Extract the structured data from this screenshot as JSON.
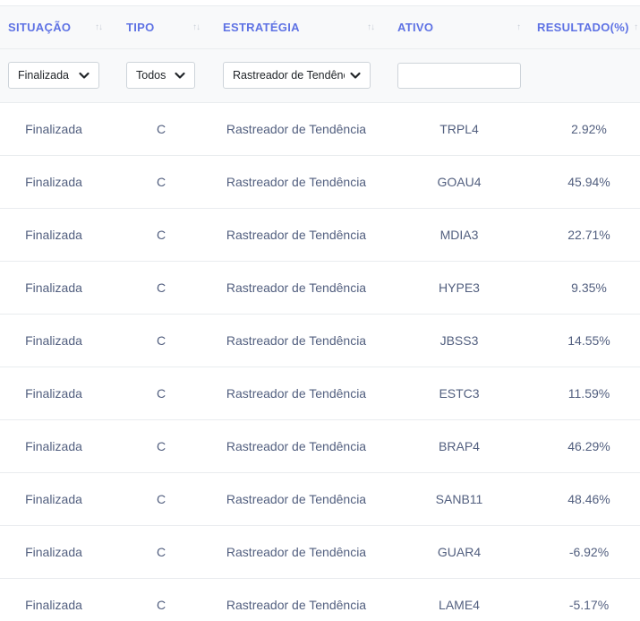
{
  "table": {
    "columns": [
      {
        "key": "situacao",
        "label": "SITUAÇÃO",
        "sort_icon": "sort-both-icon"
      },
      {
        "key": "tipo",
        "label": "TIPO",
        "sort_icon": "sort-both-icon"
      },
      {
        "key": "estrategia",
        "label": "ESTRATÉGIA",
        "sort_icon": "sort-both-icon"
      },
      {
        "key": "ativo",
        "label": "ATIVO",
        "sort_icon": "sort-up-icon"
      },
      {
        "key": "resultado",
        "label": "RESULTADO(%)",
        "sort_icon": "sort-up-icon"
      }
    ],
    "filters": {
      "situacao": "Finalizada",
      "tipo": "Todos",
      "estrategia": "Rastreador de Tendência",
      "ativo": ""
    },
    "rows": [
      {
        "situacao": "Finalizada",
        "tipo": "C",
        "estrategia": "Rastreador de Tendência",
        "ativo": "TRPL4",
        "resultado": "2.92%"
      },
      {
        "situacao": "Finalizada",
        "tipo": "C",
        "estrategia": "Rastreador de Tendência",
        "ativo": "GOAU4",
        "resultado": "45.94%"
      },
      {
        "situacao": "Finalizada",
        "tipo": "C",
        "estrategia": "Rastreador de Tendência",
        "ativo": "MDIA3",
        "resultado": "22.71%"
      },
      {
        "situacao": "Finalizada",
        "tipo": "C",
        "estrategia": "Rastreador de Tendência",
        "ativo": "HYPE3",
        "resultado": "9.35%"
      },
      {
        "situacao": "Finalizada",
        "tipo": "C",
        "estrategia": "Rastreador de Tendência",
        "ativo": "JBSS3",
        "resultado": "14.55%"
      },
      {
        "situacao": "Finalizada",
        "tipo": "C",
        "estrategia": "Rastreador de Tendência",
        "ativo": "ESTC3",
        "resultado": "11.59%"
      },
      {
        "situacao": "Finalizada",
        "tipo": "C",
        "estrategia": "Rastreador de Tendência",
        "ativo": "BRAP4",
        "resultado": "46.29%"
      },
      {
        "situacao": "Finalizada",
        "tipo": "C",
        "estrategia": "Rastreador de Tendência",
        "ativo": "SANB11",
        "resultado": "48.46%"
      },
      {
        "situacao": "Finalizada",
        "tipo": "C",
        "estrategia": "Rastreador de Tendência",
        "ativo": "GUAR4",
        "resultado": "-6.92%"
      },
      {
        "situacao": "Finalizada",
        "tipo": "C",
        "estrategia": "Rastreador de Tendência",
        "ativo": "LAME4",
        "resultado": "-5.17%"
      }
    ]
  },
  "colors": {
    "header_text": "#5e72e4",
    "header_bg": "#f8f9fa",
    "cell_text": "#525f7f",
    "border": "#e9ecef"
  }
}
